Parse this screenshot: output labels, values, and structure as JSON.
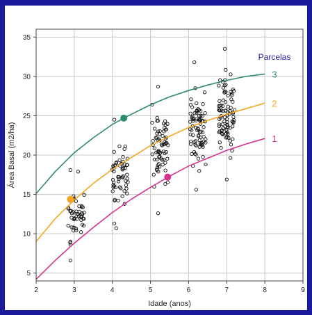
{
  "chart_data": {
    "type": "scatter",
    "title": "",
    "xlabel": "Idade (anos)",
    "ylabel": "Área Basal (m2/ha)",
    "xlim": [
      2,
      9
    ],
    "ylim": [
      4,
      36
    ],
    "xticks": [
      2,
      3,
      4,
      5,
      6,
      7,
      8,
      9
    ],
    "yticks": [
      5,
      10,
      15,
      20,
      25,
      30,
      35
    ],
    "grid": true,
    "legend": {
      "title": "Parcelas",
      "position": "top-right",
      "title_color": "#1a1a9a"
    },
    "curves": [
      {
        "name": "3",
        "color": "#2e8b6a",
        "x": [
          2.0,
          2.5,
          3.0,
          3.5,
          4.0,
          4.3,
          5.0,
          5.5,
          6.0,
          6.5,
          7.0,
          7.5,
          8.0
        ],
        "y": [
          15.1,
          17.9,
          20.3,
          22.2,
          23.9,
          24.7,
          26.4,
          27.4,
          28.2,
          28.9,
          29.5,
          30.0,
          30.3
        ],
        "highlight": {
          "x": 4.3,
          "y": 24.7
        }
      },
      {
        "name": "2",
        "color": "#f5a623",
        "x": [
          2.0,
          2.5,
          3.0,
          3.5,
          4.0,
          4.5,
          5.0,
          5.5,
          6.0,
          6.5,
          7.0,
          7.5,
          8.0
        ],
        "y": [
          9.0,
          11.9,
          14.3,
          16.4,
          18.2,
          19.7,
          21.2,
          22.4,
          23.5,
          24.4,
          25.2,
          25.9,
          26.6
        ],
        "highlight": {
          "x": 2.9,
          "y": 14.4
        }
      },
      {
        "name": "1",
        "color": "#d6338f",
        "x": [
          2.0,
          2.5,
          3.0,
          3.5,
          4.0,
          4.5,
          5.0,
          5.5,
          6.0,
          6.5,
          7.0,
          7.5,
          8.0
        ],
        "y": [
          4.2,
          6.6,
          8.8,
          10.8,
          12.7,
          14.4,
          15.9,
          17.3,
          18.6,
          19.6,
          20.6,
          21.4,
          22.1
        ],
        "highlight": {
          "x": 5.45,
          "y": 17.2
        }
      }
    ],
    "points_summary": [
      {
        "x_center": 3.05,
        "y_min": 6.5,
        "y_max": 18.3,
        "n": 50,
        "outliers": [
          [
            2.9,
            18.1
          ],
          [
            2.9,
            9.0
          ],
          [
            2.9,
            8.6
          ],
          [
            2.9,
            6.6
          ],
          [
            3.1,
            17.9
          ]
        ]
      },
      {
        "x_center": 4.2,
        "y_min": 10.5,
        "y_max": 24.5,
        "n": 55,
        "outliers": [
          [
            4.05,
            24.5
          ],
          [
            4.05,
            11.3
          ],
          [
            4.1,
            10.7
          ]
        ]
      },
      {
        "x_center": 5.25,
        "y_min": 12.5,
        "y_max": 28.7,
        "n": 70,
        "outliers": [
          [
            5.2,
            28.7
          ],
          [
            5.2,
            12.6
          ]
        ]
      },
      {
        "x_center": 6.25,
        "y_min": 15.5,
        "y_max": 31.8,
        "n": 80,
        "outliers": [
          [
            6.15,
            31.8
          ],
          [
            6.2,
            15.6
          ]
        ]
      },
      {
        "x_center": 7.0,
        "y_min": 16.8,
        "y_max": 33.5,
        "n": 90,
        "outliers": [
          [
            6.95,
            33.5
          ],
          [
            7.0,
            16.9
          ]
        ]
      }
    ]
  }
}
